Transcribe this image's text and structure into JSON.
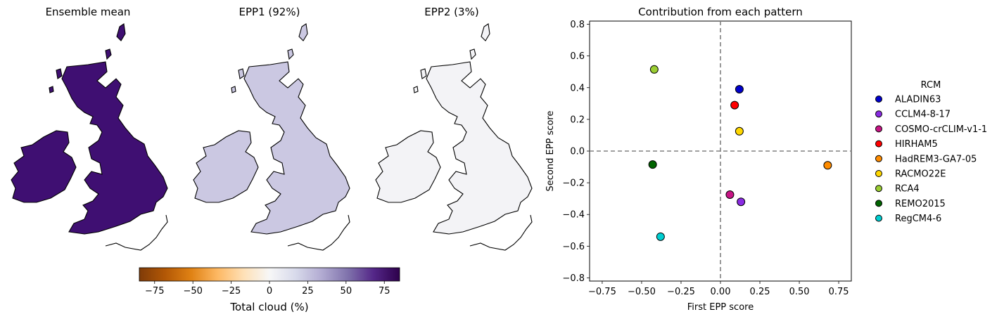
{
  "maps": {
    "panels": [
      {
        "title": "Ensemble mean",
        "fill": "#3f0f72"
      },
      {
        "title": "EPP1 (92%)",
        "fill": "#cbc8e2"
      },
      {
        "title": "EPP2 (3%)",
        "fill": "#f3f3f6"
      }
    ],
    "colorbar": {
      "label": "Total cloud (%)",
      "ticks": [
        -75,
        -50,
        -25,
        0,
        25,
        50,
        75
      ],
      "range": [
        -85,
        85
      ],
      "colormap": "PuOr",
      "stops": [
        "#7f3b08",
        "#b35806",
        "#e08214",
        "#fdb863",
        "#fee0b6",
        "#f7f7f7",
        "#d8daeb",
        "#b2abd2",
        "#8073ac",
        "#542788",
        "#2d004b"
      ]
    }
  },
  "chart_data": {
    "type": "scatter",
    "title": "Contribution from each pattern",
    "xlabel": "First EPP score",
    "ylabel": "Second EPP score",
    "xlim": [
      -0.83,
      0.83
    ],
    "ylim": [
      -0.82,
      0.82
    ],
    "xticks": [
      -0.75,
      -0.5,
      -0.25,
      0.0,
      0.25,
      0.5,
      0.75
    ],
    "xtick_labels": [
      "−0.75",
      "−0.50",
      "−0.25",
      "0.00",
      "0.25",
      "0.50",
      "0.75"
    ],
    "yticks": [
      -0.8,
      -0.6,
      -0.4,
      -0.2,
      0.0,
      0.2,
      0.4,
      0.6,
      0.8
    ],
    "ytick_labels": [
      "−0.8",
      "−0.6",
      "−0.4",
      "−0.2",
      "0.0",
      "0.2",
      "0.4",
      "0.6",
      "0.8"
    ],
    "reference_lines": {
      "x": 0,
      "y": 0,
      "style": "dashed",
      "color": "#808080"
    },
    "legend": {
      "title": "RCM",
      "placement": "outside-right"
    },
    "series": [
      {
        "name": "ALADIN63",
        "color": "#0000cd",
        "x": 0.12,
        "y": 0.39
      },
      {
        "name": "CCLM4-8-17",
        "color": "#8a2be2",
        "x": 0.13,
        "y": -0.32
      },
      {
        "name": "COSMO-crCLIM-v1-1",
        "color": "#c71585",
        "x": 0.06,
        "y": -0.275
      },
      {
        "name": "HIRHAM5",
        "color": "#ff0000",
        "x": 0.09,
        "y": 0.29
      },
      {
        "name": "HadREM3-GA7-05",
        "color": "#ff8c00",
        "x": 0.68,
        "y": -0.09
      },
      {
        "name": "RACMO22E",
        "color": "#ffd700",
        "x": 0.12,
        "y": 0.125
      },
      {
        "name": "RCA4",
        "color": "#9acd32",
        "x": -0.42,
        "y": 0.515
      },
      {
        "name": "REMO2015",
        "color": "#006400",
        "x": -0.43,
        "y": -0.085
      },
      {
        "name": "RegCM4-6",
        "color": "#00ced1",
        "x": -0.38,
        "y": -0.54
      }
    ]
  }
}
